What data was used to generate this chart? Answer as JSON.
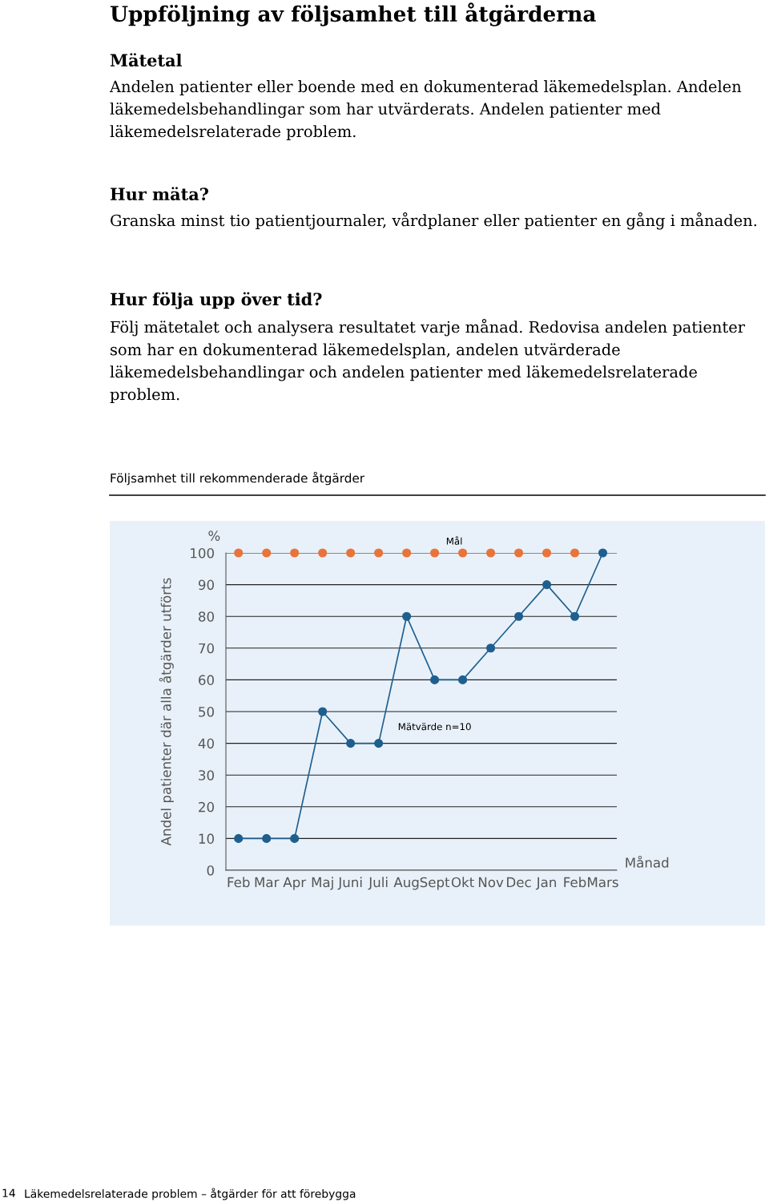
{
  "chart_data": {
    "type": "line",
    "title": "Följsamhet till rekommenderade åtgärder",
    "xlabel": "Månad",
    "ylabel": "Andel patienter där alla åtgärder utförts",
    "annotations": [
      "Uppföljning av följsamhet till åtgärderna",
      "Mätetal",
      "Andelen patienter eller boende med en dokumenterad läkemedelsplan. Andelen läkemedelsbehandlingar som har utvärderats. Andelen patienter med läkemedelsrelaterade problem.",
      "Hur mäta?",
      "Granska minst tio patientjournaler, vårdplaner eller patienter en gång i månaden.",
      "Hur följa upp över tid?",
      "Följ mätetalet och analysera resultatet varje månad. Redovisa andelen patienter som har en dokumenterad läkemedelsplan, andelen utvärderade läkemedelsbehandlingar och andelen patienter med läkemedelsrelaterade problem.",
      "%",
      "14",
      "Läkemedelsrelaterade problem – åtgärder för att förebygga"
    ],
    "categories": [
      "Feb",
      "Mar",
      "Apr",
      "Maj",
      "Juni",
      "Juli",
      "Aug",
      "Sept",
      "Okt",
      "Nov",
      "Dec",
      "Jan",
      "Feb",
      "Mars"
    ],
    "series": [
      {
        "name": "Mål",
        "type": "scatter",
        "color": "#e8743b",
        "values": [
          100,
          100,
          100,
          100,
          100,
          100,
          100,
          100,
          100,
          100,
          100,
          100,
          100,
          null
        ]
      },
      {
        "name": "Mätvärde n=10",
        "color": "#1f5f8f",
        "line_style": "solid",
        "values": [
          10,
          10,
          10,
          50,
          40,
          40,
          80,
          60,
          60,
          70,
          80,
          90,
          80,
          100
        ]
      }
    ],
    "ylim": [
      0,
      100
    ],
    "yticks": [
      0,
      10,
      20,
      30,
      40,
      50,
      60,
      70,
      80,
      90,
      100
    ],
    "grid": "y",
    "legend": false,
    "marker": "circle"
  }
}
